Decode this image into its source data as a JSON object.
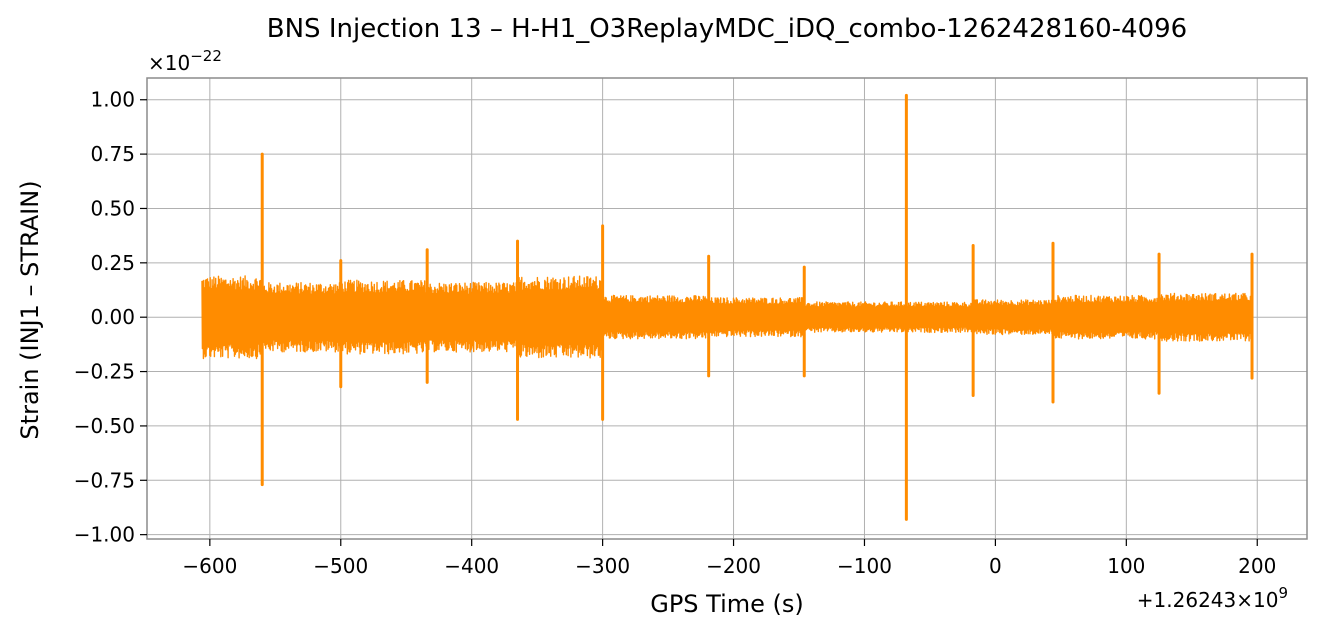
{
  "chart_data": {
    "type": "line",
    "title": "BNS Injection 13 – H-H1_O3ReplayMDC_iDQ_combo-1262428160-4096",
    "xlabel": "GPS Time (s)",
    "ylabel": "Strain (INJ1 – STRAIN)",
    "y_scale_label": "×10−22",
    "y_scale_base": "×10",
    "y_scale_exp": "−22",
    "x_offset_label": "+1.26243×10",
    "x_offset_exp": "9",
    "xlim": [
      -648,
      238
    ],
    "ylim": [
      -1.02,
      1.1
    ],
    "x_ticks": [
      -600,
      -500,
      -400,
      -300,
      -200,
      -100,
      0,
      100,
      200
    ],
    "x_tick_labels": [
      "−600",
      "−500",
      "−400",
      "−300",
      "−200",
      "−100",
      "0",
      "100",
      "200"
    ],
    "y_ticks": [
      -1.0,
      -0.75,
      -0.5,
      -0.25,
      0.0,
      0.25,
      0.5,
      0.75,
      1.0
    ],
    "y_tick_labels": [
      "−1.00",
      "−0.75",
      "−0.50",
      "−0.25",
      "0.00",
      "0.25",
      "0.50",
      "0.75",
      "1.00"
    ],
    "grid": true,
    "series": [
      {
        "color": "#ff8c00",
        "x_range": [
          -606,
          196
        ],
        "envelope": [
          {
            "from": -606,
            "to": -560,
            "upper": 0.19,
            "lower": -0.19
          },
          {
            "from": -560,
            "to": -500,
            "upper": 0.16,
            "lower": -0.16
          },
          {
            "from": -500,
            "to": -434,
            "upper": 0.17,
            "lower": -0.17
          },
          {
            "from": -434,
            "to": -365,
            "upper": 0.16,
            "lower": -0.16
          },
          {
            "from": -365,
            "to": -300,
            "upper": 0.19,
            "lower": -0.19
          },
          {
            "from": -300,
            "to": -219,
            "upper": 0.1,
            "lower": -0.1
          },
          {
            "from": -219,
            "to": -146,
            "upper": 0.09,
            "lower": -0.09
          },
          {
            "from": -146,
            "to": -68,
            "upper": 0.07,
            "lower": -0.07
          },
          {
            "from": -68,
            "to": -17,
            "upper": 0.07,
            "lower": -0.07
          },
          {
            "from": -17,
            "to": 44,
            "upper": 0.08,
            "lower": -0.08
          },
          {
            "from": 44,
            "to": 125,
            "upper": 0.1,
            "lower": -0.1
          },
          {
            "from": 125,
            "to": 196,
            "upper": 0.11,
            "lower": -0.11
          }
        ],
        "spikes": [
          {
            "x": -560,
            "upper": 0.75,
            "lower": -0.77
          },
          {
            "x": -500,
            "upper": 0.26,
            "lower": -0.32
          },
          {
            "x": -434,
            "upper": 0.31,
            "lower": -0.3
          },
          {
            "x": -365,
            "upper": 0.35,
            "lower": -0.47
          },
          {
            "x": -300,
            "upper": 0.42,
            "lower": -0.47
          },
          {
            "x": -219,
            "upper": 0.28,
            "lower": -0.27
          },
          {
            "x": -146,
            "upper": 0.23,
            "lower": -0.27
          },
          {
            "x": -68,
            "upper": 1.02,
            "lower": -0.93
          },
          {
            "x": -17,
            "upper": 0.33,
            "lower": -0.36
          },
          {
            "x": 44,
            "upper": 0.34,
            "lower": -0.39
          },
          {
            "x": 125,
            "upper": 0.29,
            "lower": -0.35
          },
          {
            "x": 196,
            "upper": 0.29,
            "lower": -0.28
          }
        ]
      }
    ]
  }
}
